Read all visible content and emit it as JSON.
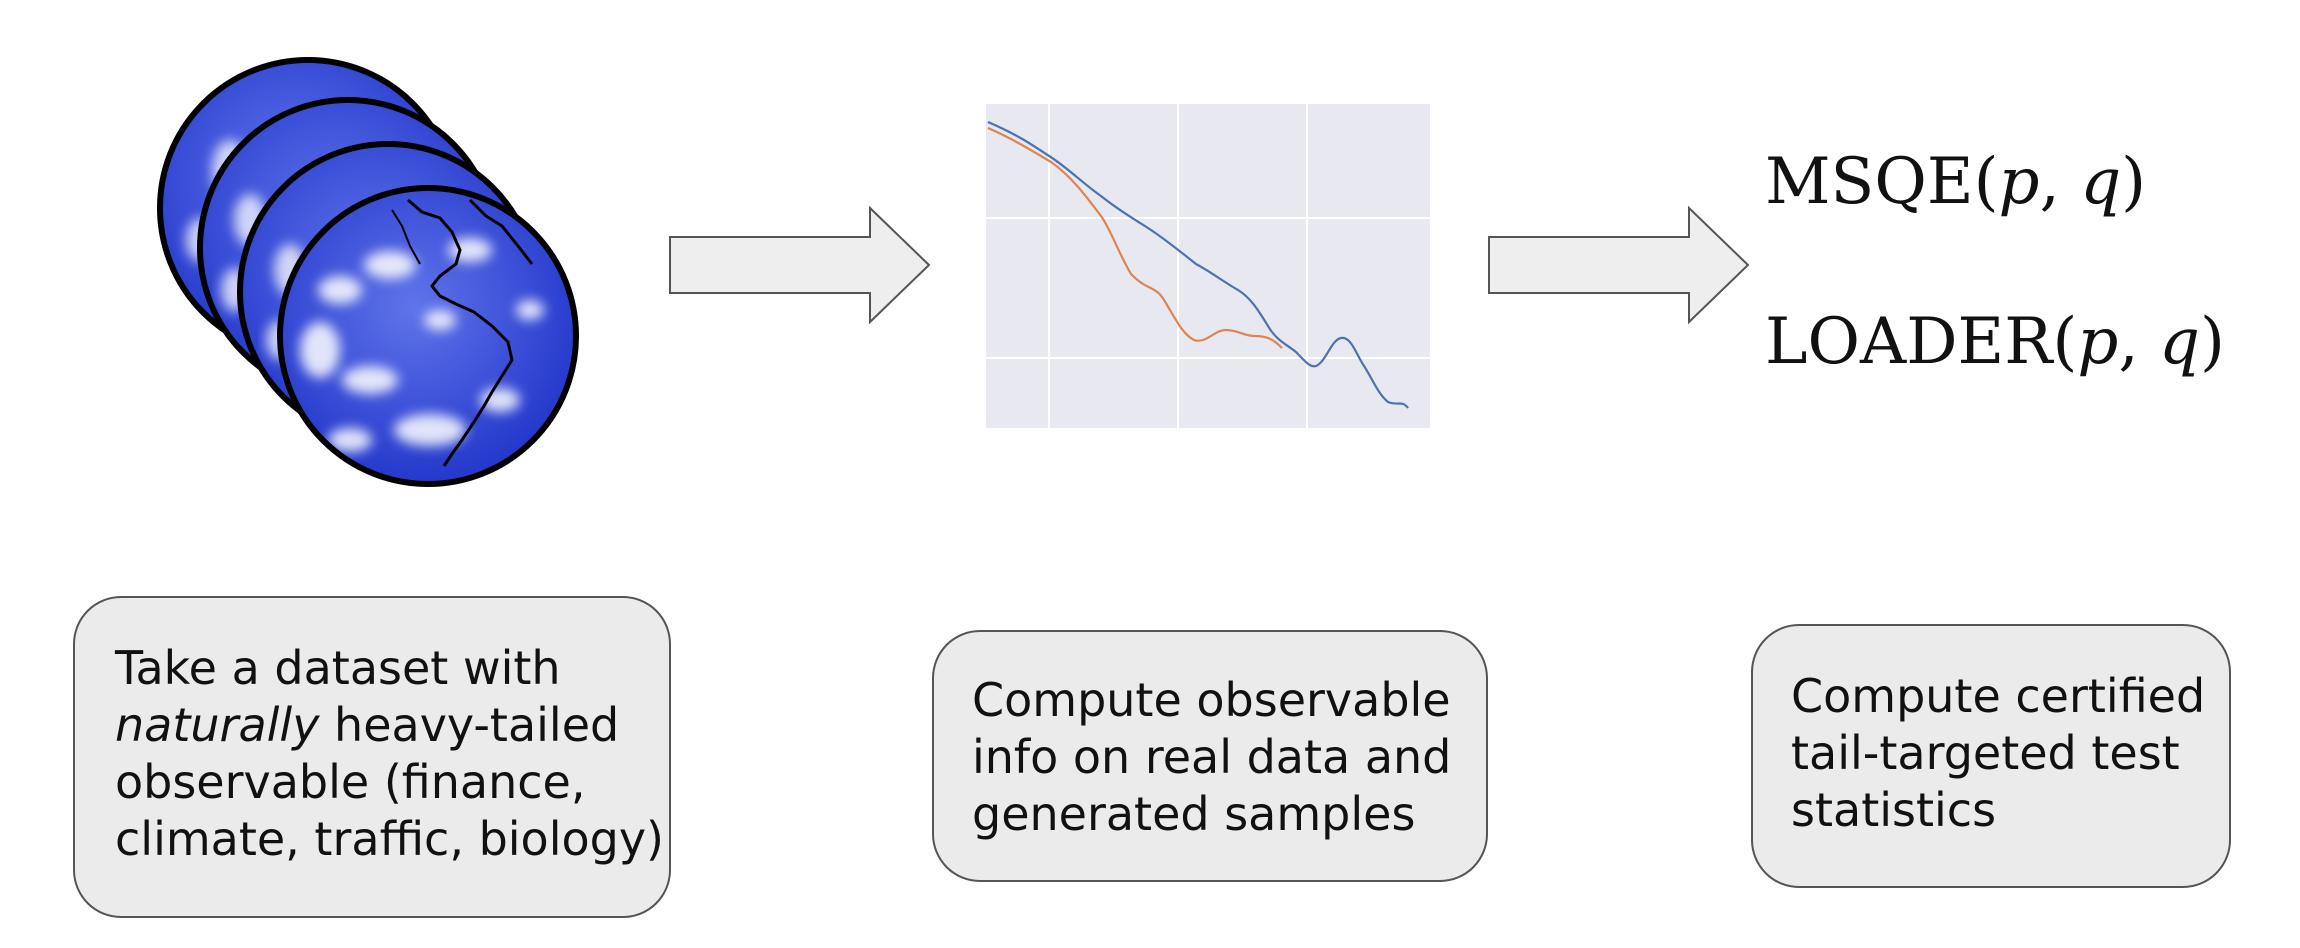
{
  "steps": [
    {
      "lines": [
        {
          "text": "Take a dataset with"
        },
        {
          "em": "naturally",
          "rest": " heavy-tailed"
        },
        {
          "text": "observable (finance,"
        },
        {
          "text": "climate, traffic, biology)"
        }
      ]
    },
    {
      "lines": [
        {
          "text": "Compute observable"
        },
        {
          "text": "info on real data and"
        },
        {
          "text": "generated samples"
        }
      ]
    },
    {
      "lines": [
        {
          "text": "Compute certified"
        },
        {
          "text": "tail-targeted test"
        },
        {
          "text": "statistics"
        }
      ]
    }
  ],
  "formulas": [
    {
      "name": "MSQE",
      "arg1": "p",
      "arg2": "q"
    },
    {
      "name": "LOADER",
      "arg1": "p",
      "arg2": "q"
    }
  ],
  "colors": {
    "globe_blue": "#2a3fd6",
    "plot_bg": "#e8e8f0",
    "series_blue": "#4c72b0",
    "series_orange": "#dd8452",
    "arrow_fill": "#eeeeee",
    "box_fill": "#ebebeb"
  }
}
